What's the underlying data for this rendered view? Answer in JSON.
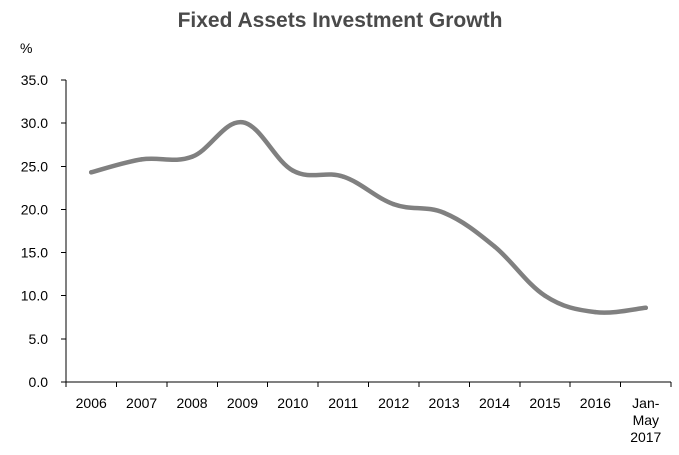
{
  "chart_data": {
    "type": "line",
    "title": "Fixed Assets Investment Growth",
    "ylabel": "%",
    "xlabel": "",
    "categories": [
      [
        "2006"
      ],
      [
        "2007"
      ],
      [
        "2008"
      ],
      [
        "2009"
      ],
      [
        "2010"
      ],
      [
        "2011"
      ],
      [
        "2012"
      ],
      [
        "2013"
      ],
      [
        "2014"
      ],
      [
        "2015"
      ],
      [
        "2016"
      ],
      [
        "Jan-",
        "May",
        "2017"
      ]
    ],
    "series": [
      {
        "values": [
          24.3,
          25.8,
          26.1,
          30.1,
          24.5,
          23.8,
          20.6,
          19.6,
          15.7,
          10.0,
          8.1,
          8.6
        ]
      }
    ],
    "ylim": [
      0,
      35
    ],
    "yticks": [
      "0.0",
      "5.0",
      "10.0",
      "15.0",
      "20.0",
      "25.0",
      "30.0",
      "35.0"
    ],
    "grid": false,
    "legend": "none",
    "colors": {
      "line": "#808080",
      "axis": "#000000",
      "title": "#4a4a4a"
    }
  }
}
